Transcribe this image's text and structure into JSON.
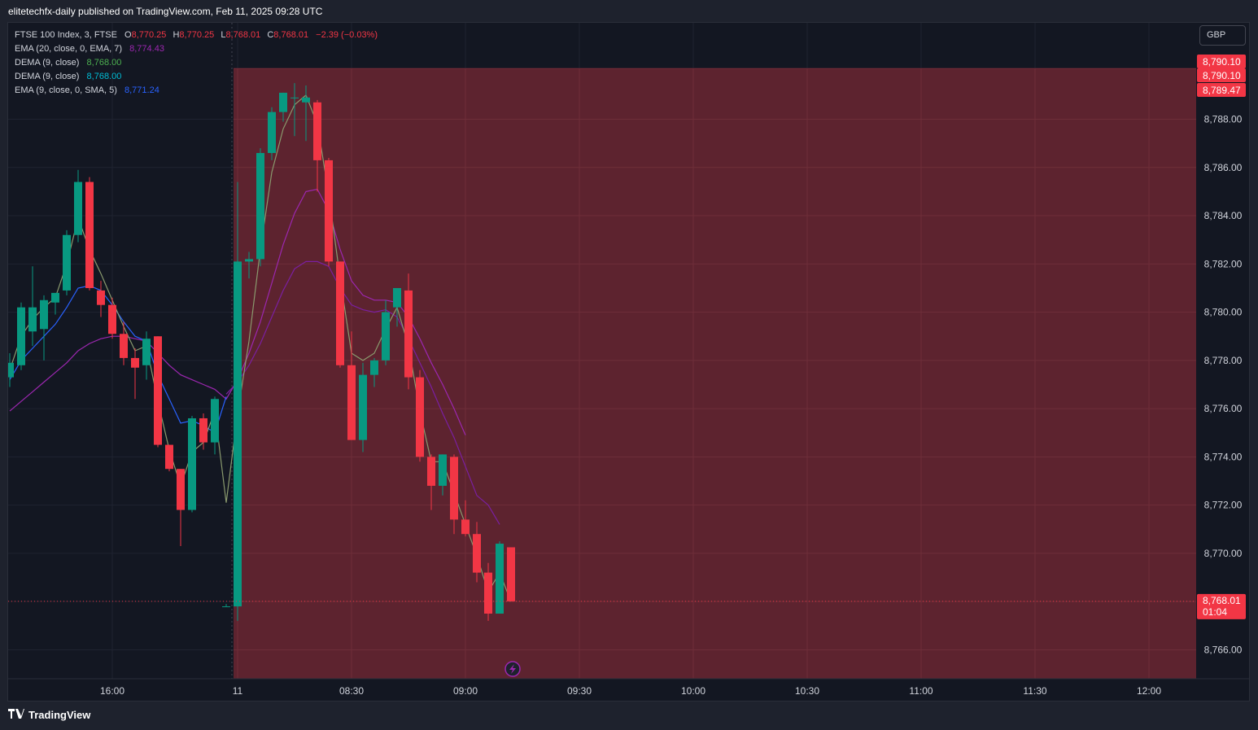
{
  "header": {
    "caption": "elitetechfx-daily published on TradingView.com, Feb 11, 2025 09:28 UTC"
  },
  "legend": {
    "symbol": "FTSE 100 Index, 3, FTSE",
    "ohlc": [
      {
        "key": "O",
        "value": "8,770.25"
      },
      {
        "key": "H",
        "value": "8,770.25"
      },
      {
        "key": "L",
        "value": "8,768.01"
      },
      {
        "key": "C",
        "value": "8,768.01"
      }
    ],
    "change": "−2.39 (−0.03%)",
    "indicators": [
      {
        "name": "EMA (20, close, 0, EMA, 7)",
        "value": "8,774.43",
        "color": "#9c27b0"
      },
      {
        "name": "DEMA (9, close)",
        "value": "8,768.00",
        "color": "#4caf50"
      },
      {
        "name": "DEMA (9, close)",
        "value": "8,768.00",
        "color": "#00bcd4"
      },
      {
        "name": "EMA (9, close, 0, SMA, 5)",
        "value": "8,771.24",
        "color": "#2962ff"
      }
    ]
  },
  "currency": "GBP",
  "footer": {
    "brand": "TradingView",
    "logo_icon": "tradingview-logo-icon"
  },
  "colors": {
    "up": "#089981",
    "down": "#f23645",
    "zone": "#642531",
    "background": "#131722",
    "grid": "#1f2330",
    "price_tag": "#f23645"
  },
  "chart_data": {
    "type": "candlestick",
    "ylim": [
      8764.8,
      8792.0
    ],
    "yticks": [
      {
        "value": 8766,
        "label": "8,766.00"
      },
      {
        "value": 8768,
        "label": "8,768.00"
      },
      {
        "value": 8770,
        "label": "8,770.00"
      },
      {
        "value": 8772,
        "label": "8,772.00"
      },
      {
        "value": 8774,
        "label": "8,774.00"
      },
      {
        "value": 8776,
        "label": "8,776.00"
      },
      {
        "value": 8778,
        "label": "8,778.00"
      },
      {
        "value": 8780,
        "label": "8,780.00"
      },
      {
        "value": 8782,
        "label": "8,782.00"
      },
      {
        "value": 8784,
        "label": "8,784.00"
      },
      {
        "value": 8786,
        "label": "8,786.00"
      },
      {
        "value": 8788,
        "label": "8,788.00"
      }
    ],
    "xticks": [
      {
        "bar": 9,
        "label": "16:00"
      },
      {
        "bar": 20,
        "label": "11"
      },
      {
        "bar": 30,
        "label": "08:30"
      },
      {
        "bar": 40,
        "label": "09:00"
      },
      {
        "bar": 50,
        "label": "09:30"
      },
      {
        "bar": 60,
        "label": "10:00"
      },
      {
        "bar": 70,
        "label": "10:30"
      },
      {
        "bar": 80,
        "label": "11:00"
      },
      {
        "bar": 90,
        "label": "11:30"
      },
      {
        "bar": 100,
        "label": "12:00"
      }
    ],
    "session_break_bar": 19.5,
    "candles": [
      {
        "o": 8777.3,
        "h": 8778.3,
        "l": 8776.9,
        "c": 8777.9
      },
      {
        "o": 8777.8,
        "h": 8780.4,
        "l": 8777.6,
        "c": 8780.2
      },
      {
        "o": 8779.2,
        "h": 8781.9,
        "l": 8778.6,
        "c": 8780.2
      },
      {
        "o": 8779.3,
        "h": 8780.7,
        "l": 8778.0,
        "c": 8780.5
      },
      {
        "o": 8780.4,
        "h": 8780.7,
        "l": 8779.9,
        "c": 8780.8
      },
      {
        "o": 8780.9,
        "h": 8783.4,
        "l": 8780.7,
        "c": 8783.2
      },
      {
        "o": 8783.2,
        "h": 8785.9,
        "l": 8782.9,
        "c": 8785.4
      },
      {
        "o": 8785.4,
        "h": 8785.6,
        "l": 8780.9,
        "c": 8781.0
      },
      {
        "o": 8780.9,
        "h": 8781.3,
        "l": 8779.8,
        "c": 8780.3
      },
      {
        "o": 8780.3,
        "h": 8780.6,
        "l": 8778.9,
        "c": 8779.1
      },
      {
        "o": 8779.1,
        "h": 8779.6,
        "l": 8777.8,
        "c": 8778.1
      },
      {
        "o": 8778.1,
        "h": 8778.5,
        "l": 8776.4,
        "c": 8777.7
      },
      {
        "o": 8777.8,
        "h": 8779.2,
        "l": 8777.2,
        "c": 8778.9
      },
      {
        "o": 8779.0,
        "h": 8779.0,
        "l": 8774.4,
        "c": 8774.5
      },
      {
        "o": 8774.5,
        "h": 8774.5,
        "l": 8773.4,
        "c": 8773.5
      },
      {
        "o": 8773.5,
        "h": 8773.5,
        "l": 8770.3,
        "c": 8771.8
      },
      {
        "o": 8771.8,
        "h": 8775.7,
        "l": 8771.7,
        "c": 8775.6
      },
      {
        "o": 8775.6,
        "h": 8775.8,
        "l": 8774.3,
        "c": 8774.6
      },
      {
        "o": 8774.6,
        "h": 8776.5,
        "l": 8774.1,
        "c": 8776.4
      },
      {
        "o": 8767.8,
        "h": 8767.9,
        "l": 8767.8,
        "c": 8767.8
      },
      {
        "o": 8767.8,
        "h": 8785.4,
        "l": 8767.2,
        "c": 8782.1
      },
      {
        "o": 8782.1,
        "h": 8782.5,
        "l": 8781.4,
        "c": 8782.2
      },
      {
        "o": 8782.2,
        "h": 8786.8,
        "l": 8781.9,
        "c": 8786.6
      },
      {
        "o": 8786.6,
        "h": 8788.5,
        "l": 8786.3,
        "c": 8788.3
      },
      {
        "o": 8788.3,
        "h": 8789.1,
        "l": 8787.9,
        "c": 8789.1
      },
      {
        "o": 8788.9,
        "h": 8789.5,
        "l": 8787.3,
        "c": 8788.9
      },
      {
        "o": 8788.7,
        "h": 8789.4,
        "l": 8787.1,
        "c": 8788.9
      },
      {
        "o": 8788.7,
        "h": 8788.8,
        "l": 8785.0,
        "c": 8786.3
      },
      {
        "o": 8786.3,
        "h": 8786.4,
        "l": 8781.9,
        "c": 8782.1
      },
      {
        "o": 8782.1,
        "h": 8782.1,
        "l": 8777.7,
        "c": 8777.8
      },
      {
        "o": 8777.8,
        "h": 8779.2,
        "l": 8774.7,
        "c": 8774.7
      },
      {
        "o": 8774.7,
        "h": 8777.9,
        "l": 8774.2,
        "c": 8777.4
      },
      {
        "o": 8777.4,
        "h": 8778.1,
        "l": 8776.9,
        "c": 8778.0
      },
      {
        "o": 8778.0,
        "h": 8780.5,
        "l": 8777.8,
        "c": 8780.0
      },
      {
        "o": 8780.2,
        "h": 8781.0,
        "l": 8779.4,
        "c": 8781.0
      },
      {
        "o": 8780.9,
        "h": 8781.6,
        "l": 8776.8,
        "c": 8777.3
      },
      {
        "o": 8777.3,
        "h": 8777.6,
        "l": 8773.8,
        "c": 8774.0
      },
      {
        "o": 8774.0,
        "h": 8774.1,
        "l": 8771.8,
        "c": 8772.8
      },
      {
        "o": 8772.8,
        "h": 8774.1,
        "l": 8772.4,
        "c": 8774.1
      },
      {
        "o": 8774.0,
        "h": 8774.1,
        "l": 8770.8,
        "c": 8771.4
      },
      {
        "o": 8771.4,
        "h": 8772.2,
        "l": 8770.7,
        "c": 8770.8
      },
      {
        "o": 8770.8,
        "h": 8771.3,
        "l": 8768.8,
        "c": 8769.2
      },
      {
        "o": 8769.2,
        "h": 8769.6,
        "l": 8767.2,
        "c": 8767.5
      },
      {
        "o": 8767.5,
        "h": 8770.5,
        "l": 8767.5,
        "c": 8770.4
      },
      {
        "o": 8770.25,
        "h": 8770.25,
        "l": 8768.01,
        "c": 8768.01
      }
    ],
    "series": [
      {
        "name": "EMA (20, close, 0, EMA, 7)",
        "color": "#9c27b0",
        "start": 0,
        "values": [
          8775.9,
          8776.3,
          8776.7,
          8777.1,
          8777.5,
          8777.9,
          8778.4,
          8778.7,
          8778.9,
          8779.0,
          8779.0,
          8778.9,
          8778.8,
          8778.3,
          8777.8,
          8777.4,
          8777.2,
          8777.0,
          8776.8,
          8776.4,
          8777.2,
          8778.3,
          8779.6,
          8781.2,
          8782.8,
          8784.1,
          8785.0,
          8785.1,
          8784.2,
          8782.6,
          8781.3,
          8780.7,
          8780.5,
          8780.5,
          8780.4,
          8779.8,
          8778.9,
          8777.9,
          8777.0,
          8776.0,
          8774.9
        ]
      },
      {
        "name": "EMA (9, close, 0, SMA, 5)",
        "color": "#7b1fa2",
        "start": 19,
        "values": [
          8776.6,
          8777.1,
          8777.8,
          8778.7,
          8779.8,
          8780.9,
          8781.8,
          8782.1,
          8782.1,
          8781.9,
          8781.0,
          8780.3,
          8780.1,
          8780.0,
          8780.1,
          8779.8,
          8778.9,
          8777.9,
          8776.9,
          8775.8,
          8774.8,
          8773.6,
          8772.4,
          8772.0,
          8771.2
        ]
      },
      {
        "name": "EMA blue",
        "color": "#2962ff",
        "start": 0,
        "values": [
          8777.2,
          8778.0,
          8778.5,
          8779.0,
          8779.5,
          8780.2,
          8781.0,
          8781.1,
          8780.9,
          8780.3,
          8779.6,
          8779.0,
          8778.8,
          8777.4,
          8776.4,
          8775.4,
          8775.5,
          8775.3,
          8775.0,
          8776.5
        ]
      },
      {
        "name": "DEMA (9, close)",
        "color": "#8a9a6e",
        "start": 0,
        "values": [
          8777.6,
          8779.0,
          8779.7,
          8780.2,
          8780.6,
          8782.0,
          8783.9,
          8782.6,
          8781.6,
          8780.5,
          8779.4,
          8778.4,
          8778.6,
          8776.3,
          8774.3,
          8772.8,
          8774.2,
          8774.6,
          8775.9,
          8772.1,
          8775.8,
          8778.8,
          8782.6,
          8785.8,
          8787.6,
          8788.6,
          8789.0,
          8787.8,
          8784.9,
          8781.4,
          8778.3,
          8778.0,
          8778.3,
          8779.3,
          8780.2,
          8778.6,
          8775.9,
          8773.8,
          8773.8,
          8772.5,
          8771.2,
          8769.9,
          8768.4,
          8769.2,
          8768.0
        ]
      }
    ],
    "zone": {
      "top": 8790.1,
      "start_bar": 19.5
    },
    "price_tags": [
      {
        "value": 8790.1,
        "label": "8,790.10"
      },
      {
        "value": 8790.1,
        "label": "8,790.10"
      },
      {
        "value": 8789.47,
        "label": "8,789.47"
      },
      {
        "value": 8768.01,
        "label": "8,768.01",
        "countdown": "01:04"
      }
    ]
  }
}
